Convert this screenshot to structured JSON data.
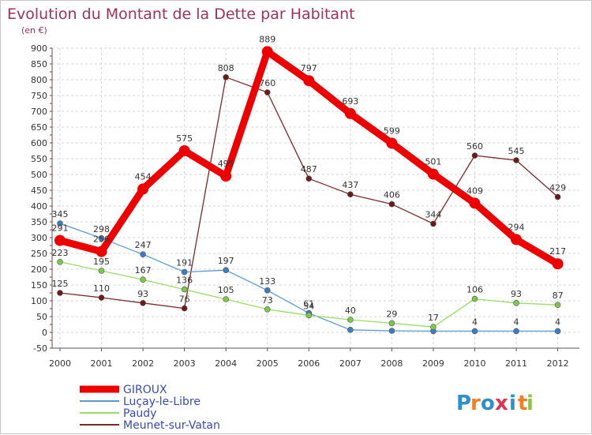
{
  "chart_data": {
    "type": "line",
    "title": "Evolution du Montant de la Dette par Habitant",
    "subtitle": "(en €)",
    "categories": [
      "2000",
      "2001",
      "2002",
      "2003",
      "2004",
      "2005",
      "2006",
      "2007",
      "2008",
      "2009",
      "2010",
      "2011",
      "2012"
    ],
    "ylim": [
      -50,
      900
    ],
    "yticks": [
      -50,
      0,
      50,
      100,
      150,
      200,
      250,
      300,
      350,
      400,
      450,
      500,
      550,
      600,
      650,
      700,
      750,
      800,
      850,
      900
    ],
    "grid": true,
    "legend_position": "bottom-left",
    "series": [
      {
        "name": "GIROUX",
        "color": "#ee0000",
        "values": [
          291,
          256,
          454,
          575,
          495,
          889,
          797,
          693,
          599,
          501,
          409,
          294,
          217
        ],
        "labels": [
          "291",
          "256",
          "454",
          "575",
          "495",
          "889",
          "797",
          "693",
          "599",
          "501",
          "409",
          "294",
          "217"
        ]
      },
      {
        "name": "Luçay-le-Libre",
        "color": "#5b9bd5",
        "marker": "#3a7fc1",
        "values": [
          345,
          298,
          247,
          191,
          197,
          133,
          61,
          8,
          5,
          4,
          4,
          4,
          4
        ],
        "labels": [
          "345",
          "298",
          "247",
          "191",
          "197",
          "133",
          "61",
          "",
          "",
          "",
          "4",
          "4",
          "4"
        ]
      },
      {
        "name": "Paudy",
        "color": "#99dd66",
        "marker": "#7cc84a",
        "values": [
          223,
          195,
          167,
          136,
          105,
          73,
          54,
          40,
          29,
          17,
          106,
          93,
          87
        ],
        "labels": [
          "223",
          "195",
          "167",
          "136",
          "105",
          "73",
          "54",
          "40",
          "29",
          "17",
          "106",
          "93",
          "87"
        ]
      },
      {
        "name": "Meunet-sur-Vatan",
        "color": "#7a2a2a",
        "marker": "#6a1a1a",
        "values": [
          125,
          110,
          93,
          76,
          808,
          760,
          487,
          437,
          406,
          344,
          560,
          545,
          429
        ],
        "labels": [
          "125",
          "110",
          "93",
          "76",
          "808",
          "760",
          "487",
          "437",
          "406",
          "344",
          "560",
          "545",
          "429"
        ]
      }
    ]
  },
  "brand": {
    "letters": [
      "P",
      "r",
      "o",
      "x",
      "i",
      "t",
      "i"
    ],
    "colors": [
      "#2c8fd0",
      "#f08020",
      "#2c8fd0",
      "#e03050",
      "#2c8fd0",
      "#f08020",
      "#8cc63e"
    ]
  }
}
